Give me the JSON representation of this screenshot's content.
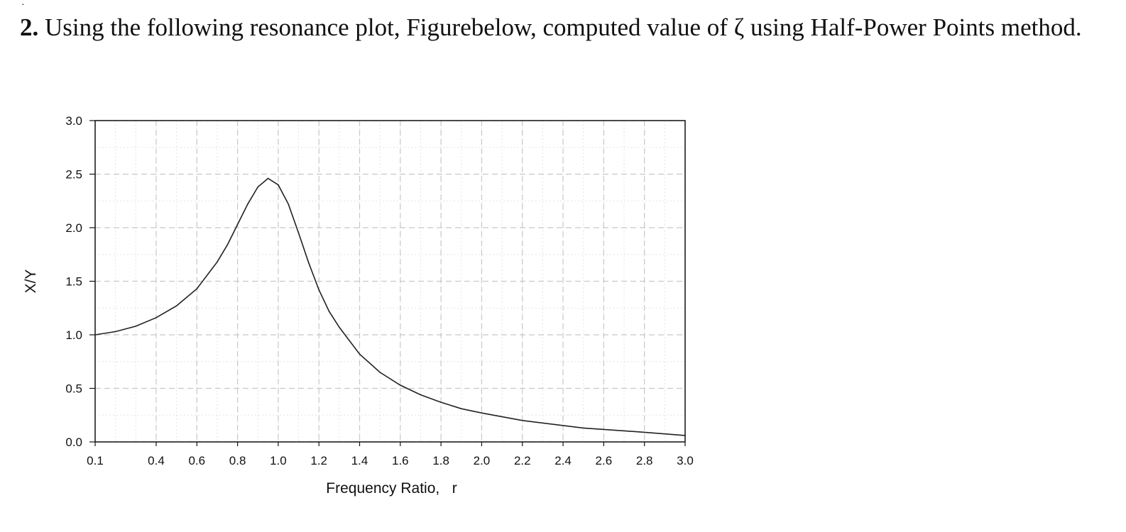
{
  "question": {
    "number": "2.",
    "text": " Using  the following resonance plot, Figurebelow, computed value of ζ using Half-Power Points method."
  },
  "chart_data": {
    "type": "line",
    "title": "",
    "xlabel": "Frequency Ratio,   r",
    "ylabel": "X/Y",
    "xlim": [
      0.1,
      3.0
    ],
    "ylim": [
      0.0,
      3.0
    ],
    "grid": true,
    "x_ticks": [
      0.1,
      0.4,
      0.6,
      0.8,
      1.0,
      1.2,
      1.4,
      1.6,
      1.8,
      2.0,
      2.2,
      2.4,
      2.6,
      2.8,
      3.0
    ],
    "x_tick_labels": [
      "0.1",
      "0.4",
      "0.6",
      "0.8",
      "1.0",
      "1.2",
      "1.4",
      "1.6",
      "1.8",
      "2.0",
      "2.2",
      "2.4",
      "2.6",
      "2.8",
      "3.0"
    ],
    "y_ticks": [
      0.0,
      0.5,
      1.0,
      1.5,
      2.0,
      2.5,
      3.0
    ],
    "y_tick_labels": [
      "0.0",
      "0.5",
      "1.0",
      "1.5",
      "2.0",
      "2.5",
      "3.0"
    ],
    "series": [
      {
        "x": [
          0.1,
          0.2,
          0.3,
          0.4,
          0.5,
          0.6,
          0.7,
          0.75,
          0.8,
          0.85,
          0.9,
          0.95,
          1.0,
          1.05,
          1.1,
          1.15,
          1.2,
          1.25,
          1.3,
          1.4,
          1.5,
          1.6,
          1.7,
          1.8,
          1.9,
          2.0,
          2.2,
          2.5,
          2.8,
          3.0
        ],
        "y": [
          1.0,
          1.03,
          1.08,
          1.16,
          1.27,
          1.43,
          1.68,
          1.84,
          2.03,
          2.22,
          2.38,
          2.46,
          2.4,
          2.22,
          1.95,
          1.67,
          1.42,
          1.22,
          1.07,
          0.82,
          0.65,
          0.53,
          0.44,
          0.37,
          0.31,
          0.27,
          0.2,
          0.13,
          0.09,
          0.06
        ]
      }
    ],
    "colors": {
      "line": "#222222",
      "grid": "#c8c8c8",
      "frame": "#111111"
    }
  }
}
